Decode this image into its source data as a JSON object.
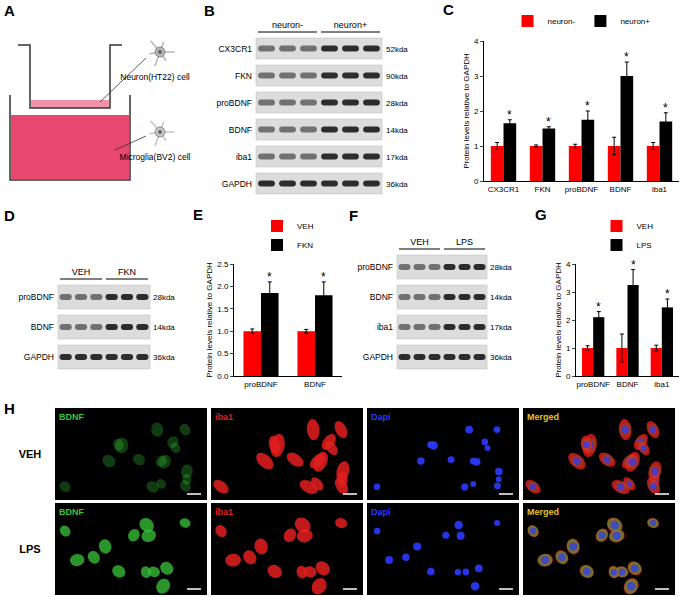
{
  "figure": {
    "panel_A": {
      "letter": "A",
      "labels": [
        "Neuron(HT22) cell",
        "Microglia(BV2) cell"
      ]
    },
    "blots": [
      {
        "letter": "B",
        "groups": [
          {
            "name": "neuron-",
            "lanes": 3
          },
          {
            "name": "neuron+",
            "lanes": 3
          }
        ],
        "rows": [
          {
            "protein": "CX3CR1",
            "size": "52kda"
          },
          {
            "protein": "FKN",
            "size": "90kda"
          },
          {
            "protein": "proBDNF",
            "size": "28kda"
          },
          {
            "protein": "BDNF",
            "size": "14kda"
          },
          {
            "protein": "iba1",
            "size": "17kda"
          },
          {
            "protein": "GAPDH",
            "size": "36kda"
          }
        ]
      },
      {
        "letter": "D",
        "groups": [
          {
            "name": "VEH",
            "lanes": 3
          },
          {
            "name": "FKN",
            "lanes": 3
          }
        ],
        "rows": [
          {
            "protein": "proBDNF",
            "size": "28kda"
          },
          {
            "protein": "BDNF",
            "size": "14kda"
          },
          {
            "protein": "GAPDH",
            "size": "36kda"
          }
        ]
      },
      {
        "letter": "F",
        "groups": [
          {
            "name": "VEH",
            "lanes": 3
          },
          {
            "name": "LPS",
            "lanes": 3
          }
        ],
        "rows": [
          {
            "protein": "proBDNF",
            "size": "28kda"
          },
          {
            "protein": "BDNF",
            "size": "14kda"
          },
          {
            "protein": "iba1",
            "size": "17kda"
          },
          {
            "protein": "GAPDH",
            "size": "36kda"
          }
        ]
      }
    ],
    "panel_H": {
      "letter": "H",
      "rows": [
        "VEH",
        "LPS"
      ],
      "columns": [
        {
          "label": "BDNF",
          "color": "#39c639"
        },
        {
          "label": "iba1",
          "color": "#e41e1e"
        },
        {
          "label": "Dapi",
          "color": "#2b3bff"
        },
        {
          "label": "Merged",
          "color": "#e6c22a"
        }
      ]
    }
  },
  "chart_data": [
    {
      "letter": "C",
      "type": "bar",
      "categories": [
        "CX3CR1",
        "FKN",
        "proBDNF",
        "BDNF",
        "iba1"
      ],
      "ylabel": "Protein levels relative to GAPDH",
      "ylim": [
        0,
        4
      ],
      "yticks": [
        0,
        1,
        2,
        3,
        4
      ],
      "grid": false,
      "legend": "top",
      "series": [
        {
          "name": "neuron-",
          "color": "#ff0000",
          "values": [
            1,
            1,
            1,
            1,
            1
          ],
          "errors": [
            0.1,
            0.03,
            0.05,
            0.25,
            0.1
          ]
        },
        {
          "name": "neuron+",
          "color": "#000000",
          "values": [
            1.65,
            1.5,
            1.75,
            3.0,
            1.7
          ],
          "errors": [
            0.1,
            0.05,
            0.25,
            0.4,
            0.25
          ]
        }
      ],
      "annotations": [
        {
          "text": "*",
          "category": "CX3CR1",
          "series": "neuron+"
        },
        {
          "text": "*",
          "category": "FKN",
          "series": "neuron+"
        },
        {
          "text": "*",
          "category": "proBDNF",
          "series": "neuron+"
        },
        {
          "text": "*",
          "category": "BDNF",
          "series": "neuron+"
        },
        {
          "text": "*",
          "category": "iba1",
          "series": "neuron+"
        }
      ]
    },
    {
      "letter": "E",
      "type": "bar",
      "categories": [
        "proBDNF",
        "BDNF"
      ],
      "ylabel": "Protein levels relative to GAPDH",
      "ylim": [
        0,
        2.5
      ],
      "yticks": [
        {
          "value": 0,
          "label": "0.0"
        },
        {
          "value": 0.5,
          "label": "0.5"
        },
        {
          "value": 1,
          "label": "1.0"
        },
        {
          "value": 1.5,
          "label": "1.5"
        },
        {
          "value": 2,
          "label": "2.0"
        },
        {
          "value": 2.5,
          "label": "2.5"
        }
      ],
      "grid": false,
      "legend": "top",
      "series": [
        {
          "name": "VEH",
          "color": "#ff0000",
          "values": [
            1.0,
            1.0
          ],
          "errors": [
            0.05,
            0.04
          ]
        },
        {
          "name": "FKN",
          "color": "#000000",
          "values": [
            1.85,
            1.8
          ],
          "errors": [
            0.25,
            0.3
          ]
        }
      ],
      "annotations": [
        {
          "text": "*",
          "category": "proBDNF",
          "series": "FKN"
        },
        {
          "text": "*",
          "category": "BDNF",
          "series": "FKN"
        }
      ]
    },
    {
      "letter": "G",
      "type": "bar",
      "categories": [
        "proBDNF",
        "BDNF",
        "iba1"
      ],
      "ylabel": "Protein levels relative to GAPDH",
      "ylim": [
        0,
        4
      ],
      "yticks": [
        0,
        1,
        2,
        3,
        4
      ],
      "grid": false,
      "legend": "top",
      "series": [
        {
          "name": "VEH",
          "color": "#ff0000",
          "values": [
            1,
            1,
            1
          ],
          "errors": [
            0.08,
            0.5,
            0.1
          ]
        },
        {
          "name": "LPS",
          "color": "#000000",
          "values": [
            2.1,
            3.25,
            2.45
          ],
          "errors": [
            0.2,
            0.55,
            0.3
          ]
        }
      ],
      "annotations": [
        {
          "text": "*",
          "category": "proBDNF",
          "series": "LPS"
        },
        {
          "text": "*",
          "category": "BDNF",
          "series": "LPS"
        },
        {
          "text": "*",
          "category": "iba1",
          "series": "LPS"
        }
      ]
    }
  ]
}
